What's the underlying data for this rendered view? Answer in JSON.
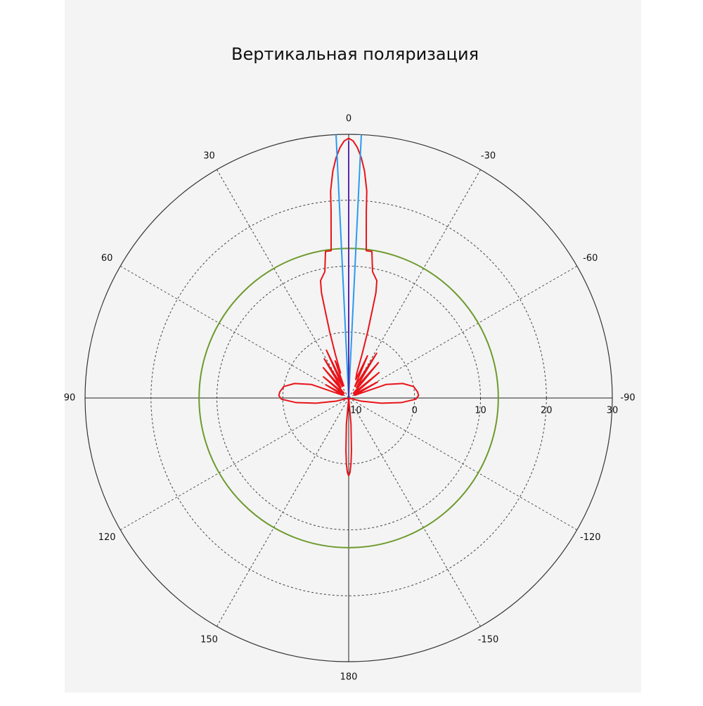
{
  "chart_data": {
    "type": "polar",
    "title": "Вертикальная поляризация",
    "rlim": [
      -10,
      30
    ],
    "rticks": [
      -10,
      0,
      10,
      20,
      30
    ],
    "theta_ticks": [
      0,
      30,
      60,
      90,
      120,
      150,
      180,
      -150,
      -120,
      -90,
      -60,
      -30
    ],
    "grid": true,
    "ref_circles": [
      {
        "value": 12.7,
        "color": "#6e9a2e"
      }
    ],
    "series": [
      {
        "color": "#e8141a",
        "theta": [
          -180,
          -179,
          -178,
          -177,
          -175,
          -170,
          -110,
          -104,
          -99,
          -95,
          -91,
          -88,
          -85,
          -80,
          -75,
          -70,
          -66,
          -61,
          -56,
          -50,
          -45,
          -40,
          -36,
          -32,
          -28,
          -24,
          -21,
          -18,
          -17,
          -16,
          -15,
          -14.5,
          -13.5,
          -10.7,
          -9,
          -6.8,
          -5.4,
          -5,
          -4,
          -3,
          -2,
          -1,
          0,
          1,
          2,
          3,
          4,
          5,
          5.4,
          6.8,
          9,
          10.7,
          13.5,
          14.5,
          15,
          16,
          17,
          18,
          20,
          22,
          25,
          28,
          32,
          36,
          40,
          44,
          50,
          55,
          60,
          65,
          70,
          75,
          80,
          85,
          88,
          91,
          95,
          99,
          104,
          110,
          170,
          175,
          177,
          178,
          179,
          180
        ],
        "values": [
          1.8,
          1.3,
          0,
          -2,
          -6,
          -10,
          -10,
          -8,
          -5,
          -2,
          0.2,
          0.6,
          0.5,
          0,
          -1.5,
          -4,
          -9,
          -5,
          -9,
          -4,
          -9,
          -3,
          -8,
          -2,
          -8,
          -3,
          -7,
          -6,
          -3,
          0.5,
          4,
          6.5,
          8.3,
          9.5,
          12.5,
          12.5,
          18.4,
          21.5,
          24.5,
          26.5,
          28,
          29,
          29.4,
          29,
          28,
          26.5,
          24.5,
          21.5,
          18.4,
          12.5,
          12.5,
          9.5,
          8.3,
          6.5,
          4,
          0.5,
          -3,
          -6,
          -4,
          -8,
          -2,
          -8,
          -3,
          -8,
          -4,
          -9,
          -5,
          -9,
          -6,
          -9,
          -4,
          -1.5,
          0,
          0.5,
          0.6,
          0.2,
          -2,
          -5,
          -8,
          -10,
          -10,
          -6,
          -2,
          0,
          1.3,
          1.8
        ]
      },
      {
        "color": "#2b9bf0",
        "theta": [
          2.75,
          2.75
        ],
        "values": [
          -10,
          30
        ]
      },
      {
        "color": "#2b9bf0",
        "theta": [
          -2.75,
          -2.75
        ],
        "values": [
          -10,
          30
        ]
      },
      {
        "color": "#5b2aa8",
        "theta": [
          0,
          0
        ],
        "values": [
          -10,
          29
        ]
      }
    ]
  }
}
